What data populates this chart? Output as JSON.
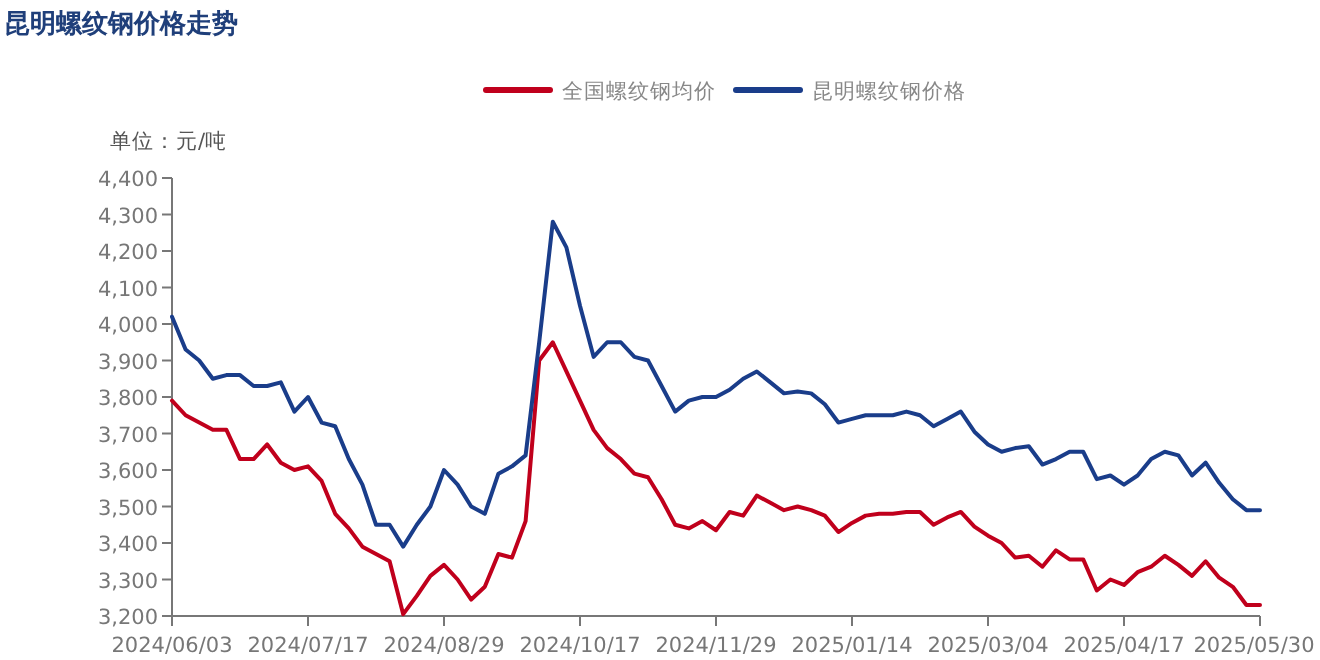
{
  "chart_data": {
    "type": "line",
    "title": "昆明螺纹钢价格走势",
    "ylabel": "单位：元/吨",
    "categories": [
      "2024/06/03",
      null,
      null,
      null,
      null,
      null,
      null,
      null,
      null,
      null,
      "2024/07/17",
      null,
      null,
      null,
      null,
      null,
      null,
      null,
      null,
      null,
      "2024/08/29",
      null,
      null,
      null,
      null,
      null,
      null,
      null,
      null,
      null,
      "2024/10/17",
      null,
      null,
      null,
      null,
      null,
      null,
      null,
      null,
      null,
      "2024/11/29",
      null,
      null,
      null,
      null,
      null,
      null,
      null,
      null,
      null,
      "2025/01/14",
      null,
      null,
      null,
      null,
      null,
      null,
      null,
      null,
      null,
      "2025/03/04",
      null,
      null,
      null,
      null,
      null,
      null,
      null,
      null,
      null,
      "2025/04/17",
      null,
      null,
      null,
      null,
      null,
      null,
      null,
      null,
      null,
      "2025/05/30"
    ],
    "series": [
      {
        "name": "全国螺纹钢均价",
        "color": "#c0001c",
        "values": [
          3790,
          3750,
          3730,
          3710,
          3710,
          3630,
          3630,
          3670,
          3620,
          3600,
          3610,
          3570,
          3480,
          3440,
          3390,
          3370,
          3350,
          3205,
          3255,
          3310,
          3340,
          3300,
          3245,
          3280,
          3370,
          3360,
          3460,
          3900,
          3950,
          3870,
          3790,
          3710,
          3660,
          3630,
          3590,
          3580,
          3520,
          3450,
          3440,
          3460,
          3435,
          3485,
          3475,
          3530,
          3510,
          3490,
          3500,
          3490,
          3475,
          3430,
          3455,
          3475,
          3480,
          3480,
          3485,
          3485,
          3450,
          3470,
          3485,
          3445,
          3420,
          3400,
          3360,
          3365,
          3335,
          3380,
          3355,
          3355,
          3270,
          3300,
          3285,
          3320,
          3335,
          3365,
          3340,
          3310,
          3350,
          3305,
          3280,
          3230,
          3230
        ]
      },
      {
        "name": "昆明螺纹钢价格",
        "color": "#1a3d8a",
        "values": [
          4020,
          3930,
          3900,
          3850,
          3860,
          3860,
          3830,
          3830,
          3840,
          3760,
          3800,
          3730,
          3720,
          3630,
          3560,
          3450,
          3450,
          3390,
          3450,
          3500,
          3600,
          3560,
          3500,
          3480,
          3590,
          3610,
          3640,
          3950,
          4280,
          4210,
          4050,
          3910,
          3950,
          3950,
          3910,
          3900,
          3830,
          3760,
          3790,
          3800,
          3800,
          3820,
          3850,
          3870,
          3840,
          3810,
          3815,
          3810,
          3780,
          3730,
          3740,
          3750,
          3750,
          3750,
          3760,
          3750,
          3720,
          3740,
          3760,
          3705,
          3670,
          3650,
          3660,
          3665,
          3615,
          3630,
          3650,
          3650,
          3575,
          3585,
          3560,
          3585,
          3630,
          3650,
          3640,
          3585,
          3620,
          3565,
          3520,
          3490,
          3490
        ]
      }
    ],
    "ylim": [
      3200,
      4400
    ],
    "yticks": [
      {
        "value": 3200,
        "label": "3,200"
      },
      {
        "value": 3300,
        "label": "3,300"
      },
      {
        "value": 3400,
        "label": "3,400"
      },
      {
        "value": 3500,
        "label": "3,500"
      },
      {
        "value": 3600,
        "label": "3,600"
      },
      {
        "value": 3700,
        "label": "3,700"
      },
      {
        "value": 3800,
        "label": "3,800"
      },
      {
        "value": 3900,
        "label": "3,900"
      },
      {
        "value": 4000,
        "label": "4,000"
      },
      {
        "value": 4100,
        "label": "4,100"
      },
      {
        "value": 4200,
        "label": "4,200"
      },
      {
        "value": 4300,
        "label": "4,300"
      },
      {
        "value": 4400,
        "label": "4,400"
      }
    ],
    "legend": "top",
    "grid": false,
    "marker": "none",
    "line_style": "solid"
  }
}
